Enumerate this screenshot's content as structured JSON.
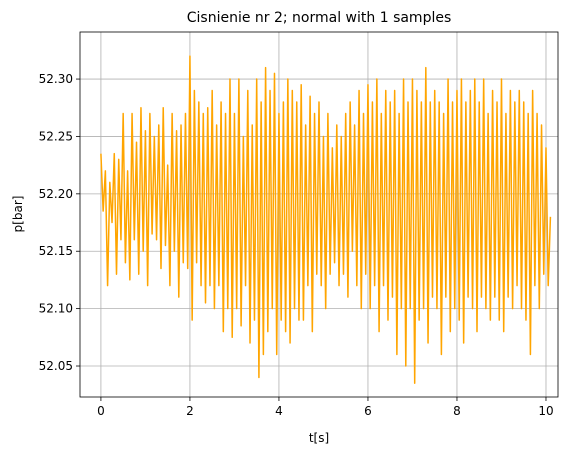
{
  "chart_data": {
    "type": "line",
    "title": "Cisnienie nr 2; normal with 1 samples",
    "xlabel": "t[s]",
    "ylabel": "p[bar]",
    "color": "#ffa500",
    "grid": true,
    "xlim": [
      -0.47,
      10.27
    ],
    "xticks": [
      0,
      2,
      4,
      6,
      8,
      10
    ],
    "ylim": [
      52.023,
      52.341
    ],
    "yticks": [
      52.05,
      {
        "value": 52.1,
        "label": "52.10"
      },
      52.15,
      {
        "value": 52.2,
        "label": "52.20"
      },
      52.25,
      {
        "value": 52.3,
        "label": "52.30"
      }
    ],
    "x": [
      0,
      0.05,
      0.1,
      0.15,
      0.2,
      0.25,
      0.3,
      0.35,
      0.4,
      0.45,
      0.5,
      0.55,
      0.6,
      0.65,
      0.7,
      0.75,
      0.8,
      0.85,
      0.9,
      0.95,
      1,
      1.05,
      1.1,
      1.15,
      1.2,
      1.25,
      1.3,
      1.35,
      1.4,
      1.45,
      1.5,
      1.55,
      1.6,
      1.65,
      1.7,
      1.75,
      1.8,
      1.85,
      1.9,
      1.95,
      2,
      2.05,
      2.1,
      2.15,
      2.2,
      2.25,
      2.3,
      2.35,
      2.4,
      2.45,
      2.5,
      2.55,
      2.6,
      2.65,
      2.7,
      2.75,
      2.8,
      2.85,
      2.9,
      2.95,
      3,
      3.05,
      3.1,
      3.15,
      3.2,
      3.25,
      3.3,
      3.35,
      3.4,
      3.45,
      3.5,
      3.55,
      3.6,
      3.65,
      3.7,
      3.75,
      3.8,
      3.85,
      3.9,
      3.95,
      4,
      4.05,
      4.1,
      4.15,
      4.2,
      4.25,
      4.3,
      4.35,
      4.4,
      4.45,
      4.5,
      4.55,
      4.6,
      4.65,
      4.7,
      4.75,
      4.8,
      4.85,
      4.9,
      4.95,
      5,
      5.05,
      5.1,
      5.15,
      5.2,
      5.25,
      5.3,
      5.35,
      5.4,
      5.45,
      5.5,
      5.55,
      5.6,
      5.65,
      5.7,
      5.75,
      5.8,
      5.85,
      5.9,
      5.95,
      6,
      6.05,
      6.1,
      6.15,
      6.2,
      6.25,
      6.3,
      6.35,
      6.4,
      6.45,
      6.5,
      6.55,
      6.6,
      6.65,
      6.7,
      6.75,
      6.8,
      6.85,
      6.9,
      6.95,
      7,
      7.05,
      7.1,
      7.15,
      7.2,
      7.25,
      7.3,
      7.35,
      7.4,
      7.45,
      7.5,
      7.55,
      7.6,
      7.65,
      7.7,
      7.75,
      7.8,
      7.85,
      7.9,
      7.95,
      8,
      8.05,
      8.1,
      8.15,
      8.2,
      8.25,
      8.3,
      8.35,
      8.4,
      8.45,
      8.5,
      8.55,
      8.6,
      8.65,
      8.7,
      8.75,
      8.8,
      8.85,
      8.9,
      8.95,
      9,
      9.05,
      9.1,
      9.15,
      9.2,
      9.25,
      9.3,
      9.35,
      9.4,
      9.45,
      9.5,
      9.55,
      9.6,
      9.65,
      9.7,
      9.75,
      9.8,
      9.85,
      9.9,
      9.95,
      10,
      10.05,
      10.1
    ],
    "values": [
      52.235,
      52.185,
      52.22,
      52.12,
      52.21,
      52.175,
      52.235,
      52.13,
      52.23,
      52.16,
      52.27,
      52.14,
      52.22,
      52.125,
      52.27,
      52.16,
      52.245,
      52.13,
      52.275,
      52.15,
      52.255,
      52.12,
      52.27,
      52.165,
      52.25,
      52.16,
      52.26,
      52.135,
      52.275,
      52.155,
      52.225,
      52.12,
      52.27,
      52.15,
      52.255,
      52.11,
      52.26,
      52.14,
      52.27,
      52.135,
      52.32,
      52.09,
      52.29,
      52.14,
      52.28,
      52.12,
      52.27,
      52.105,
      52.275,
      52.12,
      52.29,
      52.1,
      52.26,
      52.12,
      52.28,
      52.08,
      52.27,
      52.1,
      52.3,
      52.075,
      52.27,
      52.1,
      52.3,
      52.085,
      52.25,
      52.12,
      52.29,
      52.07,
      52.26,
      52.09,
      52.3,
      52.04,
      52.28,
      52.06,
      52.31,
      52.08,
      52.29,
      52.1,
      52.305,
      52.06,
      52.27,
      52.09,
      52.28,
      52.08,
      52.3,
      52.07,
      52.29,
      52.1,
      52.28,
      52.09,
      52.295,
      52.09,
      52.26,
      52.12,
      52.285,
      52.08,
      52.27,
      52.13,
      52.28,
      52.12,
      52.25,
      52.1,
      52.27,
      52.13,
      52.24,
      52.14,
      52.26,
      52.12,
      52.25,
      52.13,
      52.27,
      52.11,
      52.28,
      52.15,
      52.26,
      52.12,
      52.29,
      52.1,
      52.27,
      52.13,
      52.295,
      52.1,
      52.28,
      52.12,
      52.3,
      52.08,
      52.27,
      52.12,
      52.29,
      52.09,
      52.28,
      52.11,
      52.29,
      52.06,
      52.27,
      52.1,
      52.3,
      52.05,
      52.28,
      52.1,
      52.3,
      52.035,
      52.29,
      52.09,
      52.28,
      52.1,
      52.31,
      52.07,
      52.28,
      52.11,
      52.29,
      52.1,
      52.28,
      52.06,
      52.27,
      52.11,
      52.3,
      52.08,
      52.28,
      52.1,
      52.29,
      52.09,
      52.3,
      52.07,
      52.28,
      52.11,
      52.29,
      52.1,
      52.3,
      52.08,
      52.28,
      52.11,
      52.3,
      52.1,
      52.27,
      52.09,
      52.29,
      52.11,
      52.28,
      52.09,
      52.3,
      52.08,
      52.27,
      52.11,
      52.29,
      52.1,
      52.28,
      52.12,
      52.29,
      52.1,
      52.28,
      52.09,
      52.27,
      52.06,
      52.29,
      52.12,
      52.27,
      52.1,
      52.26,
      52.13,
      52.24,
      52.12,
      52.18
    ]
  }
}
